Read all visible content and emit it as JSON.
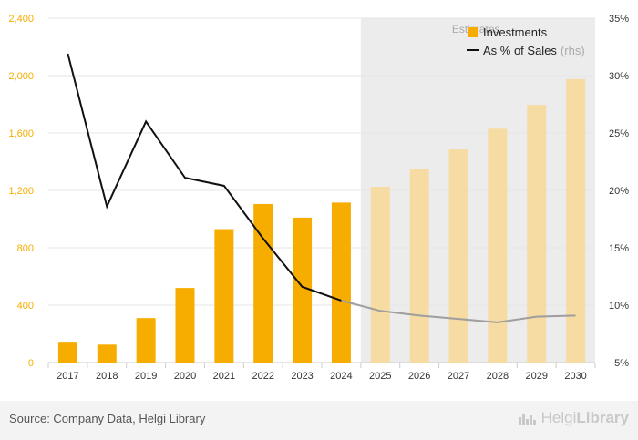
{
  "chart_data": {
    "type": "bar+line",
    "categories": [
      "2017",
      "2018",
      "2019",
      "2020",
      "2021",
      "2022",
      "2023",
      "2024",
      "2025",
      "2026",
      "2027",
      "2028",
      "2029",
      "2030"
    ],
    "series": [
      {
        "name": "Investments",
        "axis": "left",
        "type": "bar",
        "values": [
          145,
          125,
          310,
          520,
          930,
          1105,
          1010,
          1115,
          1225,
          1350,
          1485,
          1630,
          1795,
          1975
        ]
      },
      {
        "name": "As % of Sales",
        "axis_label": "(rhs)",
        "axis": "right",
        "type": "line",
        "values": [
          31.9,
          18.6,
          26.0,
          21.1,
          20.4,
          15.8,
          11.6,
          10.4,
          9.5,
          9.1,
          8.8,
          8.5,
          9.0,
          9.1
        ]
      }
    ],
    "estimate_start": "2025",
    "estimate_label": "Estimates",
    "y_left": {
      "min": 0,
      "max": 2400,
      "ticks": [
        "0",
        "400",
        "800",
        "1,200",
        "1,600",
        "2,000",
        "2,400"
      ]
    },
    "y_right": {
      "min": 5,
      "max": 35,
      "ticks": [
        "5%",
        "10%",
        "15%",
        "20%",
        "25%",
        "30%",
        "35%"
      ]
    },
    "colors": {
      "bar": "#f7ad00",
      "bar_estimate": "#f6dba2",
      "line": "#111111",
      "line_estimate": "#9e9e9e",
      "left_axis_text": "#f7ad00",
      "estimate_bg": "#ececec"
    },
    "legend": "top-right",
    "grid": true
  },
  "footer": {
    "source": "Source: Company Data, Helgi Library",
    "logo_light": "Helgi",
    "logo_bold": "Library"
  }
}
